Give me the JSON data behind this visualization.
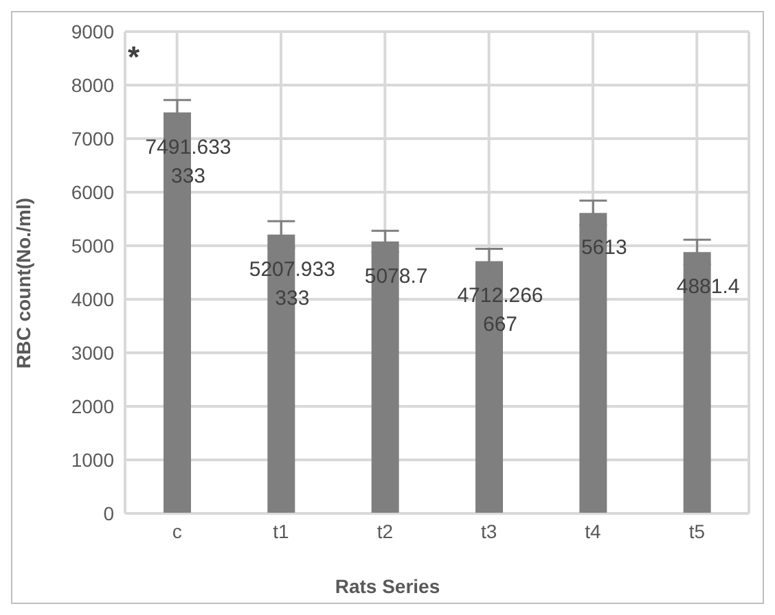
{
  "chart_data": {
    "type": "bar",
    "xlabel": "Rats Series",
    "ylabel": "RBC count(No./ml)",
    "categories": [
      "c",
      "t1",
      "t2",
      "t3",
      "t4",
      "t5"
    ],
    "values": [
      7491.633333,
      5207.933333,
      5078.7,
      4712.266667,
      5613,
      4881.4
    ],
    "errors": [
      230,
      250,
      200,
      230,
      230,
      230
    ],
    "color": "#7f7f7f",
    "data_labels": true,
    "ylim": [
      0,
      9000
    ],
    "yticks": [
      0,
      1000,
      2000,
      3000,
      4000,
      5000,
      6000,
      7000,
      8000,
      9000
    ],
    "grid": true,
    "annotations": [
      "*"
    ]
  }
}
